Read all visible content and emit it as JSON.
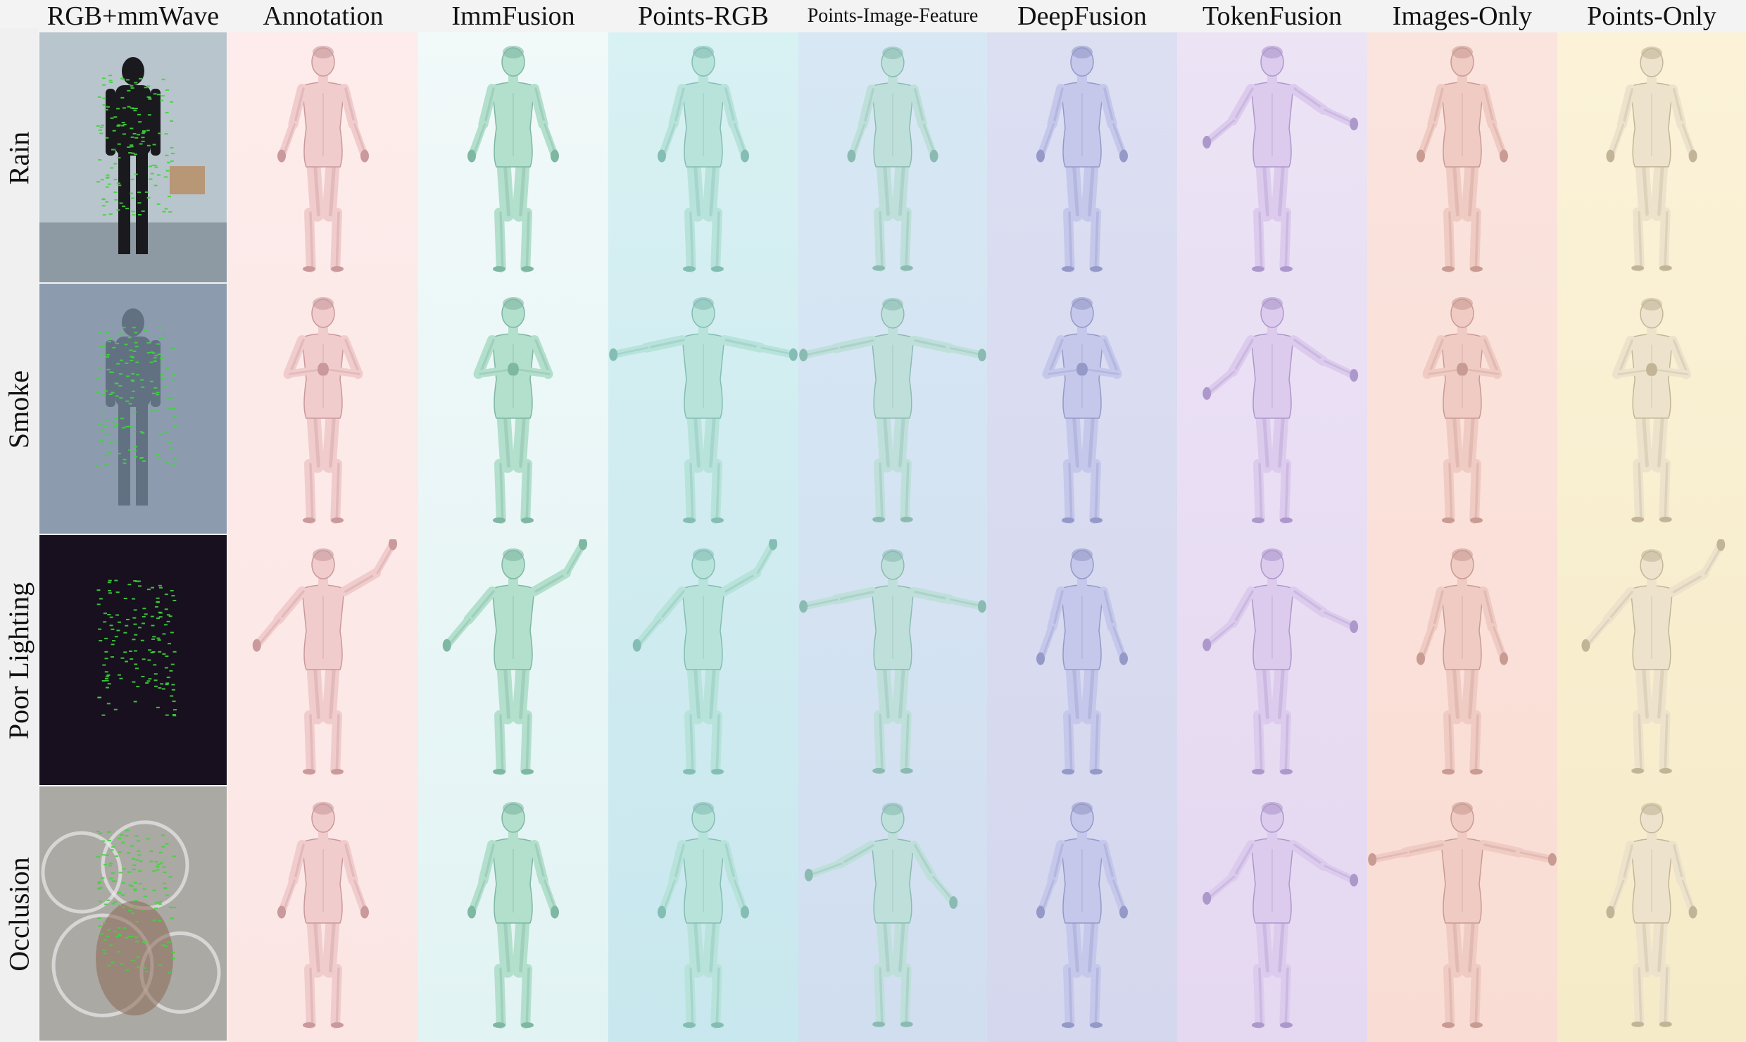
{
  "row_labels": [
    "Rain",
    "Smoke",
    "Poor Lighting",
    "Occlusion"
  ],
  "columns": [
    {
      "title": "RGB+mmWave",
      "kind": "photo"
    },
    {
      "title": "Annotation",
      "kind": "mesh",
      "fill": "#f1cccd",
      "shade": "#c9999c",
      "bg_top": "#fdeceb",
      "bg_bottom": "#fbe6e4"
    },
    {
      "title": "ImmFusion",
      "kind": "mesh",
      "fill": "#b3dfcd",
      "shade": "#7eb7a2",
      "bg_top": "#f1f9f9",
      "bg_bottom": "#e2f3f4"
    },
    {
      "title": "Points-RGB",
      "kind": "mesh",
      "fill": "#b8e3db",
      "shade": "#84bdb3",
      "bg_top": "#d8f1f3",
      "bg_bottom": "#c8e7ee"
    },
    {
      "title": "Points-Image-Feature",
      "kind": "mesh",
      "fill": "#bfe0da",
      "shade": "#8bbab2",
      "bg_top": "#d7e8f4",
      "bg_bottom": "#d1def0"
    },
    {
      "title": "DeepFusion",
      "kind": "mesh",
      "fill": "#c5c8eb",
      "shade": "#9599c7",
      "bg_top": "#dcdff2",
      "bg_bottom": "#d5d7ee"
    },
    {
      "title": "TokenFusion",
      "kind": "mesh",
      "fill": "#dccbed",
      "shade": "#ad98cb",
      "bg_top": "#ece3f5",
      "bg_bottom": "#e5d8f1"
    },
    {
      "title": "Images-Only",
      "kind": "mesh",
      "fill": "#efcbc4",
      "shade": "#c89b93",
      "bg_top": "#fbe4de",
      "bg_bottom": "#f9ddd4"
    },
    {
      "title": "Points-Only",
      "kind": "mesh",
      "fill": "#ede3cd",
      "shade": "#c2b597",
      "bg_top": "#fbf2d8",
      "bg_bottom": "#f6ebc8"
    }
  ],
  "photo_colors": {
    "Rain": "#b9c5cc",
    "Smoke": "#8c9cae",
    "Poor Lighting": "#18101e",
    "Occlusion": "#aaa9a3",
    "points": "#3fd43c"
  }
}
